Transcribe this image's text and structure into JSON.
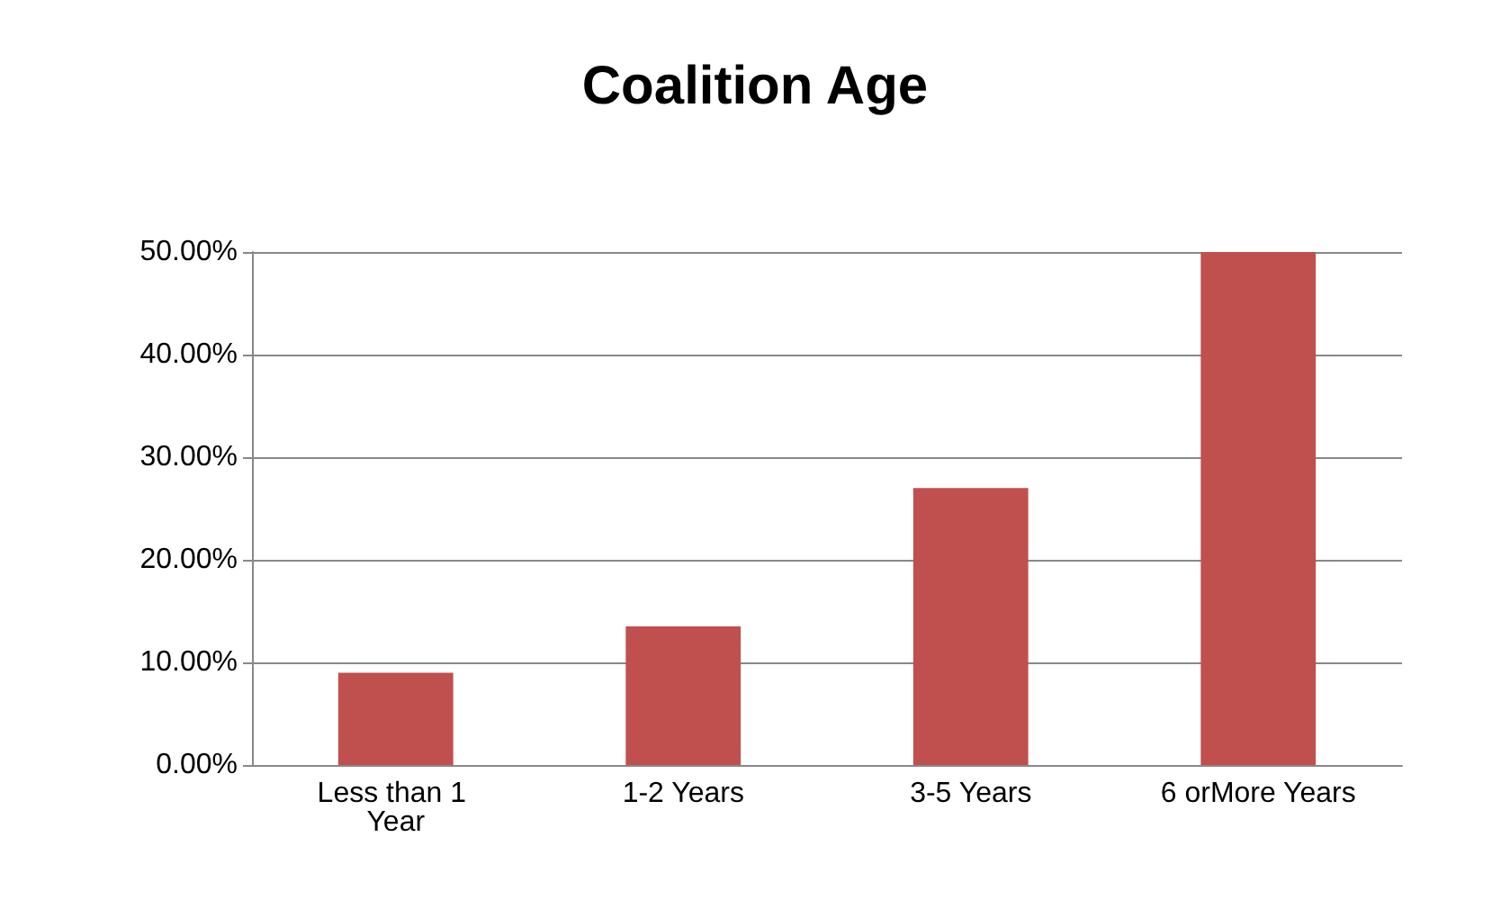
{
  "chart_data": {
    "type": "bar",
    "title": "Coalition Age",
    "categories": [
      "Less than 1 Year",
      "1-2 Years",
      "3-5 Years",
      "6 orMore Years"
    ],
    "values": [
      9,
      13.5,
      27,
      50
    ],
    "color": "#c0504d",
    "ylim": [
      0,
      50
    ],
    "yticks": [
      {
        "value": 0,
        "label": "0.00%"
      },
      {
        "value": 10,
        "label": "10.00%"
      },
      {
        "value": 20,
        "label": "20.00%"
      },
      {
        "value": 30,
        "label": "30.00%"
      },
      {
        "value": 40,
        "label": "40.00%"
      },
      {
        "value": 50,
        "label": "50.00%"
      }
    ],
    "grid": "y"
  }
}
